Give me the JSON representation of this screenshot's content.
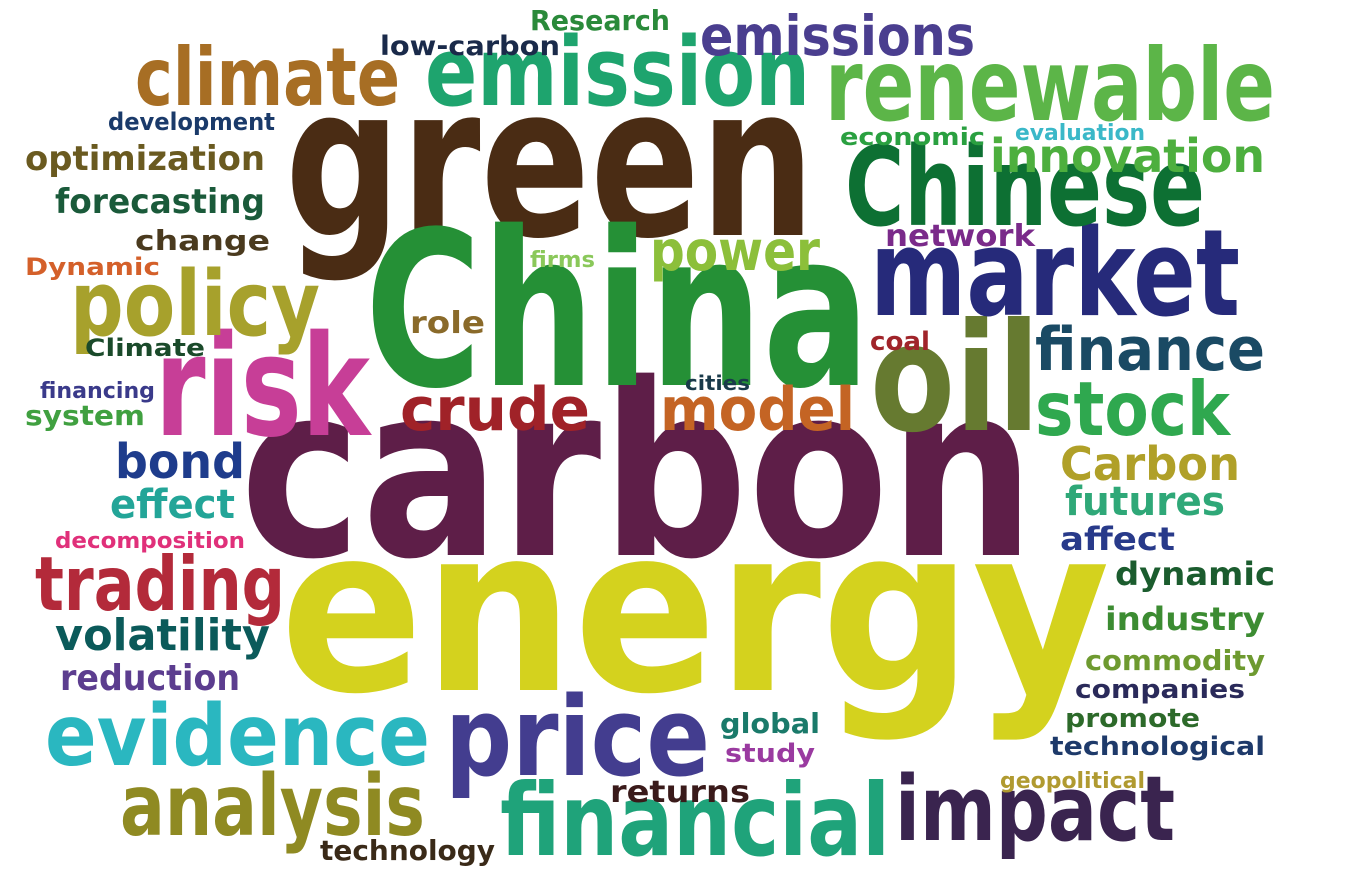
{
  "words": [
    {
      "text": "green",
      "color": "#4a2c14"
    },
    {
      "text": "carbon",
      "color": "#5e1e48"
    },
    {
      "text": "energy",
      "color": "#d4d21e"
    },
    {
      "text": "China",
      "color": "#259036"
    },
    {
      "text": "risk",
      "color": "#c73e97"
    },
    {
      "text": "oil",
      "color": "#667a30"
    },
    {
      "text": "market",
      "color": "#262a7a"
    },
    {
      "text": "Chinese",
      "color": "#0d7033"
    },
    {
      "text": "renewable",
      "color": "#5cb548"
    },
    {
      "text": "emission",
      "color": "#1ea46e"
    },
    {
      "text": "climate",
      "color": "#a76e24"
    },
    {
      "text": "emissions",
      "color": "#4a3e8f"
    },
    {
      "text": "policy",
      "color": "#a7a12c"
    },
    {
      "text": "price",
      "color": "#433d8f"
    },
    {
      "text": "evidence",
      "color": "#2ab7c0"
    },
    {
      "text": "analysis",
      "color": "#8f8a22"
    },
    {
      "text": "financial",
      "color": "#1fa37a"
    },
    {
      "text": "impact",
      "color": "#3a244f"
    },
    {
      "text": "trading",
      "color": "#b32a3a"
    },
    {
      "text": "crude",
      "color": "#a02228"
    },
    {
      "text": "model",
      "color": "#c46424"
    },
    {
      "text": "stock",
      "color": "#2fa84f"
    },
    {
      "text": "finance",
      "color": "#1a4a64"
    },
    {
      "text": "power",
      "color": "#8cbf3a"
    },
    {
      "text": "innovation",
      "color": "#4daf3e"
    },
    {
      "text": "bond",
      "color": "#1e3c8c"
    },
    {
      "text": "effect",
      "color": "#23a598"
    },
    {
      "text": "volatility",
      "color": "#0b5a5a"
    },
    {
      "text": "reduction",
      "color": "#5c3d8f"
    },
    {
      "text": "Carbon",
      "color": "#b0a028"
    },
    {
      "text": "futures",
      "color": "#2fa878"
    },
    {
      "text": "affect",
      "color": "#283a8a"
    },
    {
      "text": "dynamic",
      "color": "#1b5c2e"
    },
    {
      "text": "industry",
      "color": "#3c8c32"
    },
    {
      "text": "commodity",
      "color": "#6e9a30"
    },
    {
      "text": "companies",
      "color": "#2a2a5a"
    },
    {
      "text": "promote",
      "color": "#2d6a2a"
    },
    {
      "text": "technological",
      "color": "#1e3a6a"
    },
    {
      "text": "geopolitical",
      "color": "#b09a30"
    },
    {
      "text": "global",
      "color": "#1a7a6a"
    },
    {
      "text": "study",
      "color": "#9a3aa0"
    },
    {
      "text": "returns",
      "color": "#3a1a1a"
    },
    {
      "text": "technology",
      "color": "#3a2a18"
    },
    {
      "text": "decomposition",
      "color": "#e0307a"
    },
    {
      "text": "financing",
      "color": "#3a3a8a"
    },
    {
      "text": "system",
      "color": "#40a040"
    },
    {
      "text": "Climate",
      "color": "#1a4a2a"
    },
    {
      "text": "Dynamic",
      "color": "#d4602a"
    },
    {
      "text": "change",
      "color": "#4a3a1e"
    },
    {
      "text": "forecasting",
      "color": "#1a5a3a"
    },
    {
      "text": "optimization",
      "color": "#6a5a20"
    },
    {
      "text": "development",
      "color": "#1a3a6a"
    },
    {
      "text": "low-carbon",
      "color": "#1a2a4a"
    },
    {
      "text": "Research",
      "color": "#2a8a3a"
    },
    {
      "text": "economic",
      "color": "#2aa040"
    },
    {
      "text": "evaluation",
      "color": "#3ab8c8"
    },
    {
      "text": "network",
      "color": "#7a2a8a"
    },
    {
      "text": "firms",
      "color": "#8ac85a"
    },
    {
      "text": "role",
      "color": "#8a6a2a"
    },
    {
      "text": "coal",
      "color": "#a0242a"
    },
    {
      "text": "cities",
      "color": "#1a3a4a"
    }
  ]
}
